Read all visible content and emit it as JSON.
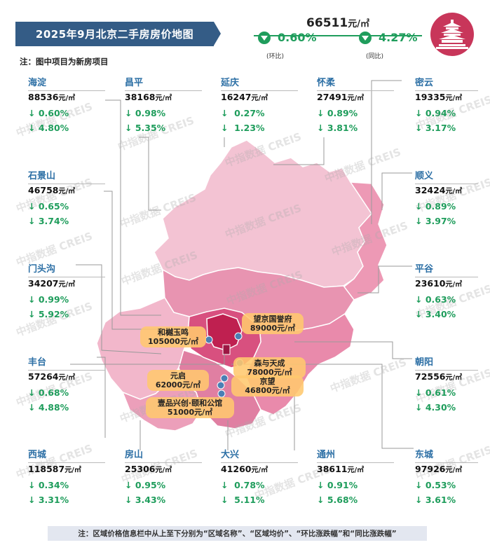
{
  "title": "2025年9月北京二手房房价地图",
  "note_top": "注：图中项目为新房项目",
  "note_bottom": "注：区域价格信息栏中从上至下分别为“区域名称”、“区域均价”、“环比涨跌幅”和“同比涨跌幅”",
  "watermark": "中指数据 CREIS",
  "unit": "元/㎡",
  "overall": {
    "price": "66511",
    "unit": "元/㎡",
    "mom": "0.60%",
    "yoy": "4.27%",
    "mom_label": "(环比)",
    "yoy_label": "(同比)"
  },
  "colors": {
    "district_name": "#2c6fa5",
    "change_green": "#1f9d5c",
    "banner": "#345c86",
    "map_light": "#f3bfd0",
    "map_mid": "#e98aab",
    "map_dark": "#d94a7a",
    "map_core": "#c02354",
    "project_bg": "#ffc86e"
  },
  "districts": [
    {
      "name": "海淀",
      "price": "88536",
      "mom": "↓ 0.60%",
      "yoy": "↓ 4.80%"
    },
    {
      "name": "昌平",
      "price": "38168",
      "mom": "↓ 0.98%",
      "yoy": "↓ 5.35%"
    },
    {
      "name": "延庆",
      "price": "16247",
      "mom": "↓  0.27%",
      "yoy": "↓  1.23%"
    },
    {
      "name": "怀柔",
      "price": "27491",
      "mom": "↓ 0.89%",
      "yoy": "↓ 3.81%"
    },
    {
      "name": "密云",
      "price": "19335",
      "mom": "↓ 0.94%",
      "yoy": "↓ 3.17%"
    },
    {
      "name": "石景山",
      "price": "46758",
      "mom": "↓ 0.65%",
      "yoy": "↓ 3.74%"
    },
    {
      "name": "顺义",
      "price": "32424",
      "mom": "↓ 0.89%",
      "yoy": "↓ 3.97%"
    },
    {
      "name": "门头沟",
      "price": "34207",
      "mom": "↓ 0.99%",
      "yoy": "↓ 5.92%"
    },
    {
      "name": "平谷",
      "price": "23610",
      "mom": "↓ 0.63%",
      "yoy": "↓ 3.40%"
    },
    {
      "name": "丰台",
      "price": "57264",
      "mom": "↓ 0.68%",
      "yoy": "↓ 4.88%"
    },
    {
      "name": "朝阳",
      "price": "72556",
      "mom": "↓ 0.61%",
      "yoy": "↓ 4.30%"
    },
    {
      "name": "西城",
      "price": "118587",
      "mom": "↓ 0.34%",
      "yoy": "↓ 3.31%"
    },
    {
      "name": "房山",
      "price": "25306",
      "mom": "↓ 0.95%",
      "yoy": "↓ 3.43%"
    },
    {
      "name": "大兴",
      "price": "41260",
      "mom": "↓  0.78%",
      "yoy": "↓  5.11%"
    },
    {
      "name": "通州",
      "price": "38611",
      "mom": "↓ 0.91%",
      "yoy": "↓ 5.68%"
    },
    {
      "name": "东城",
      "price": "97926",
      "mom": "↓ 0.53%",
      "yoy": "↓ 3.61%"
    }
  ],
  "projects": [
    {
      "name": "望京国誉府",
      "price": "89000元/㎡"
    },
    {
      "name": "和樾玉鸣",
      "price": "105000元/㎡"
    },
    {
      "name": "森与天成",
      "price": "78000元/㎡"
    },
    {
      "name": "元启",
      "price": "62000元/㎡"
    },
    {
      "name": "京望",
      "price": "46800元/㎡"
    },
    {
      "name": "壹品兴创·颐和公馆",
      "price": "51000元/㎡"
    }
  ]
}
